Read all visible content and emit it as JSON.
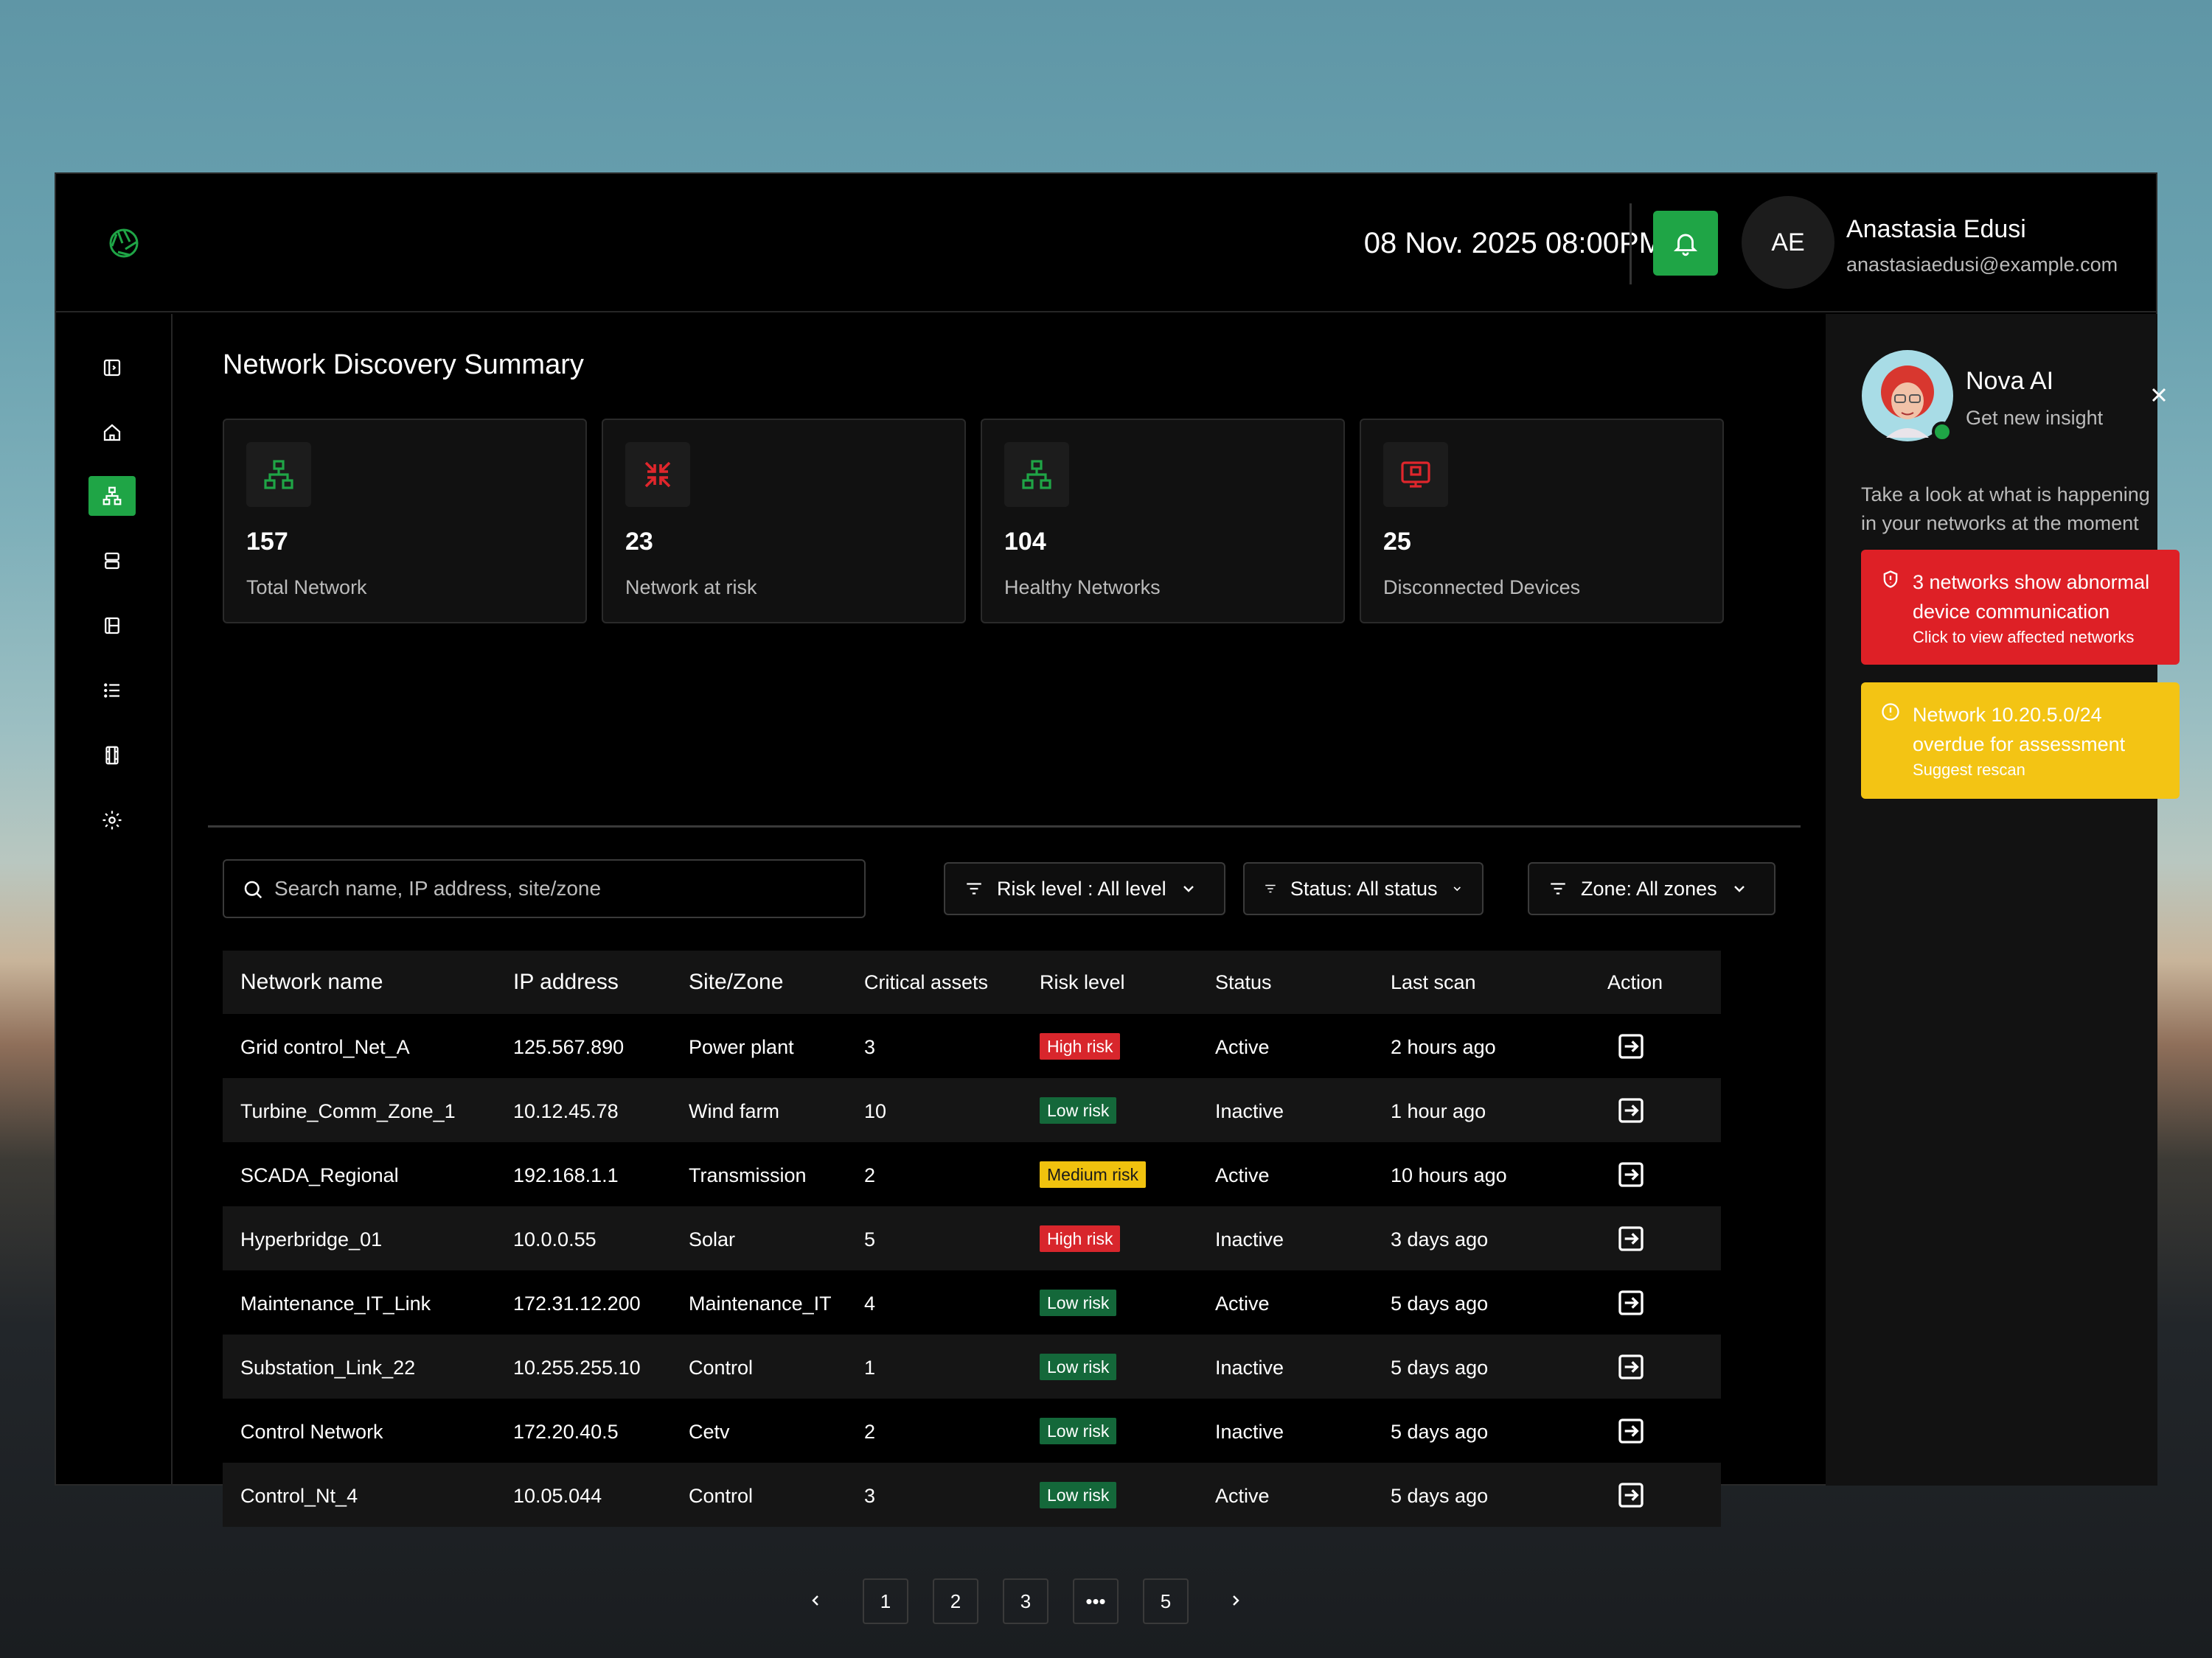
{
  "header": {
    "datetime": "08 Nov. 2025 08:00PM",
    "user": {
      "initials": "AE",
      "name": "Anastasia Edusi",
      "email": "anastasiaedusi@example.com"
    }
  },
  "sidebar": {
    "items": [
      {
        "name": "panel-toggle-icon"
      },
      {
        "name": "home-icon"
      },
      {
        "name": "network-icon",
        "active": true
      },
      {
        "name": "server-icon"
      },
      {
        "name": "book-icon"
      },
      {
        "name": "list-icon"
      },
      {
        "name": "film-icon"
      },
      {
        "name": "gear-icon"
      }
    ]
  },
  "main": {
    "title": "Network Discovery Summary",
    "cards": [
      {
        "value": "157",
        "label": "Total Network",
        "icon": "network-icon",
        "color": "#1fa546"
      },
      {
        "value": "23",
        "label": "Network at risk",
        "icon": "collapse-arrows-icon",
        "color": "#e0262c"
      },
      {
        "value": "104",
        "label": "Healthy Networks",
        "icon": "network-icon",
        "color": "#1fa546"
      },
      {
        "value": "25",
        "label": "Disconnected Devices",
        "icon": "monitor-icon",
        "color": "#e0262c"
      }
    ],
    "search": {
      "placeholder": "Search name, IP address, site/zone"
    },
    "filters": {
      "risk": "Risk level : All level",
      "status": "Status: All status",
      "zone": "Zone: All zones"
    },
    "table": {
      "headers": {
        "name": "Network name",
        "ip": "IP address",
        "site": "Site/Zone",
        "critical": "Critical assets",
        "risk": "Risk level",
        "status": "Status",
        "scan": "Last scan",
        "action": "Action"
      },
      "rows": [
        {
          "name": "Grid control_Net_A",
          "ip": "125.567.890",
          "site": "Power plant",
          "critical": "3",
          "risk": "High risk",
          "level": "high",
          "status": "Active",
          "scan": "2 hours ago"
        },
        {
          "name": "Turbine_Comm_Zone_1",
          "ip": "10.12.45.78",
          "site": "Wind farm",
          "critical": "10",
          "risk": "Low risk",
          "level": "low",
          "status": "Inactive",
          "scan": "1 hour ago"
        },
        {
          "name": "SCADA_Regional",
          "ip": "192.168.1.1",
          "site": "Transmission",
          "critical": "2",
          "risk": "Medium risk",
          "level": "medium",
          "status": "Active",
          "scan": "10 hours ago"
        },
        {
          "name": "Hyperbridge_01",
          "ip": "10.0.0.55",
          "site": "Solar",
          "critical": "5",
          "risk": "High risk",
          "level": "high",
          "status": "Inactive",
          "scan": "3 days ago"
        },
        {
          "name": "Maintenance_IT_Link",
          "ip": "172.31.12.200",
          "site": "Maintenance_IT",
          "critical": "4",
          "risk": "Low risk",
          "level": "low",
          "status": "Active",
          "scan": "5 days ago"
        },
        {
          "name": "Substation_Link_22",
          "ip": "10.255.255.10",
          "site": "Control",
          "critical": "1",
          "risk": "Low risk",
          "level": "low",
          "status": "Inactive",
          "scan": "5 days ago"
        },
        {
          "name": "Control Network",
          "ip": "172.20.40.5",
          "site": "Cetv",
          "critical": "2",
          "risk": "Low risk",
          "level": "low",
          "status": "Inactive",
          "scan": "5 days ago"
        },
        {
          "name": "Control_Nt_4",
          "ip": "10.05.044",
          "site": "Control",
          "critical": "3",
          "risk": "Low risk",
          "level": "low",
          "status": "Active",
          "scan": "5 days ago"
        }
      ]
    },
    "pagination": {
      "pages": [
        "1",
        "2",
        "3",
        "•••",
        "5"
      ]
    }
  },
  "panel": {
    "ai_name": "Nova AI",
    "ai_sub": "Get new insight",
    "intro": "Take a look at what is happening in your networks at the moment",
    "alerts": [
      {
        "type": "danger",
        "icon": "shield-alert-icon",
        "title": "3 networks show abnormal device communication",
        "sub": "Click to view affected networks",
        "color": "#de2026"
      },
      {
        "type": "warning",
        "icon": "info-icon",
        "title": "Network 10.20.5.0/24 overdue for assessment",
        "sub": "Suggest rescan",
        "color": "#f3c414"
      }
    ]
  }
}
